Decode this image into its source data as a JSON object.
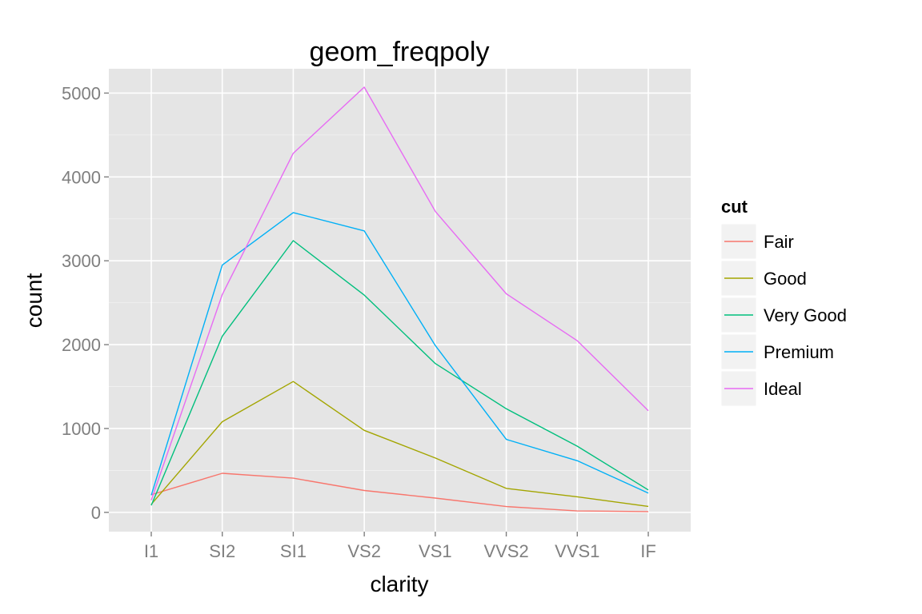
{
  "chart_data": {
    "type": "line",
    "title": "geom_freqpoly",
    "xlabel": "clarity",
    "ylabel": "count",
    "categories": [
      "I1",
      "SI2",
      "SI1",
      "VS2",
      "VS1",
      "VVS2",
      "VVS1",
      "IF"
    ],
    "ylim": [
      -230,
      5290
    ],
    "yticks": [
      0,
      1000,
      2000,
      3000,
      4000,
      5000
    ],
    "grid": true,
    "legend": {
      "title": "cut",
      "position": "right"
    },
    "series": [
      {
        "name": "Fair",
        "color": "#F8766D",
        "values": [
          210,
          466,
          408,
          261,
          170,
          69,
          17,
          9
        ]
      },
      {
        "name": "Good",
        "color": "#A3A500",
        "values": [
          96,
          1081,
          1560,
          978,
          648,
          286,
          186,
          71
        ]
      },
      {
        "name": "Very Good",
        "color": "#00BF7D",
        "values": [
          84,
          2100,
          3240,
          2591,
          1775,
          1235,
          789,
          268
        ]
      },
      {
        "name": "Premium",
        "color": "#00B0F6",
        "values": [
          205,
          2949,
          3575,
          3357,
          1989,
          870,
          616,
          230
        ]
      },
      {
        "name": "Ideal",
        "color": "#E76BF3",
        "values": [
          146,
          2598,
          4282,
          5071,
          3589,
          2606,
          2047,
          1212
        ]
      }
    ]
  }
}
